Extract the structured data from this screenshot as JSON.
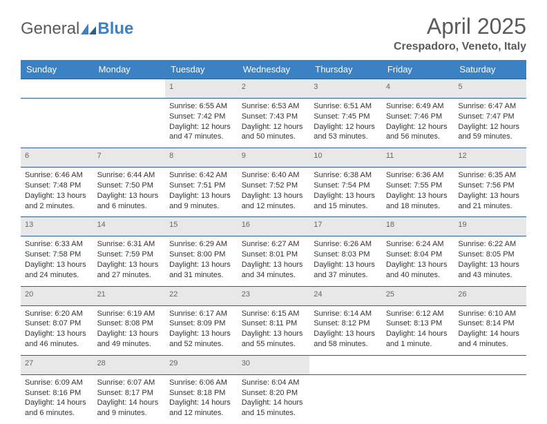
{
  "logo": {
    "text1": "General",
    "text2": "Blue"
  },
  "title": "April 2025",
  "location": "Crespadoro, Veneto, Italy",
  "colors": {
    "header_bg": "#3b82c4",
    "header_text": "#ffffff",
    "daynum_bg": "#e8e8e8",
    "daynum_text": "#666666",
    "border": "#2a5d8a",
    "body_text": "#333333"
  },
  "weekdays": [
    "Sunday",
    "Monday",
    "Tuesday",
    "Wednesday",
    "Thursday",
    "Friday",
    "Saturday"
  ],
  "weeks": [
    [
      null,
      null,
      {
        "n": "1",
        "sr": "6:55 AM",
        "ss": "7:42 PM",
        "dl": "12 hours and 47 minutes."
      },
      {
        "n": "2",
        "sr": "6:53 AM",
        "ss": "7:43 PM",
        "dl": "12 hours and 50 minutes."
      },
      {
        "n": "3",
        "sr": "6:51 AM",
        "ss": "7:45 PM",
        "dl": "12 hours and 53 minutes."
      },
      {
        "n": "4",
        "sr": "6:49 AM",
        "ss": "7:46 PM",
        "dl": "12 hours and 56 minutes."
      },
      {
        "n": "5",
        "sr": "6:47 AM",
        "ss": "7:47 PM",
        "dl": "12 hours and 59 minutes."
      }
    ],
    [
      {
        "n": "6",
        "sr": "6:46 AM",
        "ss": "7:48 PM",
        "dl": "13 hours and 2 minutes."
      },
      {
        "n": "7",
        "sr": "6:44 AM",
        "ss": "7:50 PM",
        "dl": "13 hours and 6 minutes."
      },
      {
        "n": "8",
        "sr": "6:42 AM",
        "ss": "7:51 PM",
        "dl": "13 hours and 9 minutes."
      },
      {
        "n": "9",
        "sr": "6:40 AM",
        "ss": "7:52 PM",
        "dl": "13 hours and 12 minutes."
      },
      {
        "n": "10",
        "sr": "6:38 AM",
        "ss": "7:54 PM",
        "dl": "13 hours and 15 minutes."
      },
      {
        "n": "11",
        "sr": "6:36 AM",
        "ss": "7:55 PM",
        "dl": "13 hours and 18 minutes."
      },
      {
        "n": "12",
        "sr": "6:35 AM",
        "ss": "7:56 PM",
        "dl": "13 hours and 21 minutes."
      }
    ],
    [
      {
        "n": "13",
        "sr": "6:33 AM",
        "ss": "7:58 PM",
        "dl": "13 hours and 24 minutes."
      },
      {
        "n": "14",
        "sr": "6:31 AM",
        "ss": "7:59 PM",
        "dl": "13 hours and 27 minutes."
      },
      {
        "n": "15",
        "sr": "6:29 AM",
        "ss": "8:00 PM",
        "dl": "13 hours and 31 minutes."
      },
      {
        "n": "16",
        "sr": "6:27 AM",
        "ss": "8:01 PM",
        "dl": "13 hours and 34 minutes."
      },
      {
        "n": "17",
        "sr": "6:26 AM",
        "ss": "8:03 PM",
        "dl": "13 hours and 37 minutes."
      },
      {
        "n": "18",
        "sr": "6:24 AM",
        "ss": "8:04 PM",
        "dl": "13 hours and 40 minutes."
      },
      {
        "n": "19",
        "sr": "6:22 AM",
        "ss": "8:05 PM",
        "dl": "13 hours and 43 minutes."
      }
    ],
    [
      {
        "n": "20",
        "sr": "6:20 AM",
        "ss": "8:07 PM",
        "dl": "13 hours and 46 minutes."
      },
      {
        "n": "21",
        "sr": "6:19 AM",
        "ss": "8:08 PM",
        "dl": "13 hours and 49 minutes."
      },
      {
        "n": "22",
        "sr": "6:17 AM",
        "ss": "8:09 PM",
        "dl": "13 hours and 52 minutes."
      },
      {
        "n": "23",
        "sr": "6:15 AM",
        "ss": "8:11 PM",
        "dl": "13 hours and 55 minutes."
      },
      {
        "n": "24",
        "sr": "6:14 AM",
        "ss": "8:12 PM",
        "dl": "13 hours and 58 minutes."
      },
      {
        "n": "25",
        "sr": "6:12 AM",
        "ss": "8:13 PM",
        "dl": "14 hours and 1 minute."
      },
      {
        "n": "26",
        "sr": "6:10 AM",
        "ss": "8:14 PM",
        "dl": "14 hours and 4 minutes."
      }
    ],
    [
      {
        "n": "27",
        "sr": "6:09 AM",
        "ss": "8:16 PM",
        "dl": "14 hours and 6 minutes."
      },
      {
        "n": "28",
        "sr": "6:07 AM",
        "ss": "8:17 PM",
        "dl": "14 hours and 9 minutes."
      },
      {
        "n": "29",
        "sr": "6:06 AM",
        "ss": "8:18 PM",
        "dl": "14 hours and 12 minutes."
      },
      {
        "n": "30",
        "sr": "6:04 AM",
        "ss": "8:20 PM",
        "dl": "14 hours and 15 minutes."
      },
      null,
      null,
      null
    ]
  ],
  "labels": {
    "sunrise": "Sunrise:",
    "sunset": "Sunset:",
    "daylight": "Daylight:"
  }
}
